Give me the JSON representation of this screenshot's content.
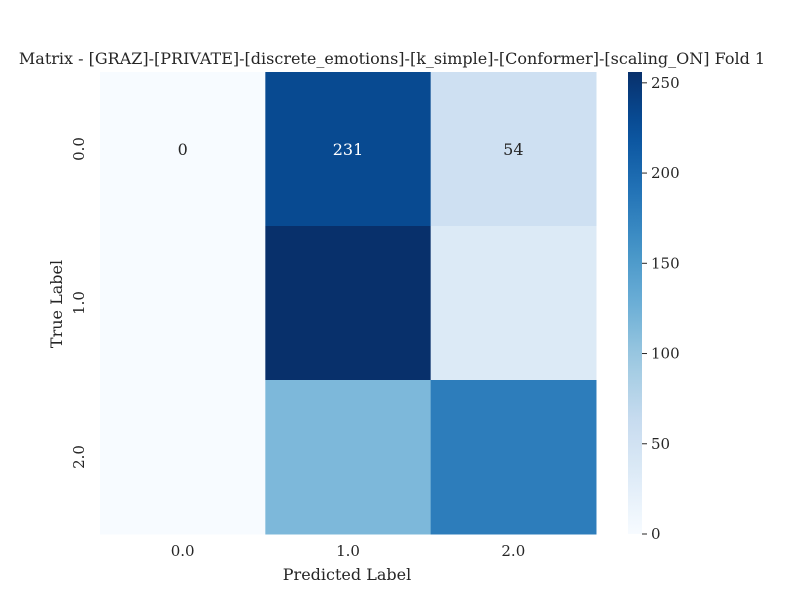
{
  "chart_data": {
    "type": "heatmap",
    "title": "Matrix - [GRAZ]-[PRIVATE]-[discrete_emotions]-[k_simple]-[Conformer]-[scaling_ON] Fold 1",
    "xlabel": "Predicted Label",
    "ylabel": "True Label",
    "x_categories": [
      "0.0",
      "1.0",
      "2.0"
    ],
    "y_categories": [
      "0.0",
      "1.0",
      "2.0"
    ],
    "values": [
      [
        0,
        231,
        54
      ],
      [
        0,
        256,
        35
      ],
      [
        0,
        117,
        180
      ]
    ],
    "annotated": [
      true,
      false,
      false
    ],
    "colormap": "Blues",
    "colorbar": {
      "min": 0,
      "max": 256,
      "ticks": [
        0,
        50,
        100,
        150,
        200,
        250
      ]
    }
  }
}
